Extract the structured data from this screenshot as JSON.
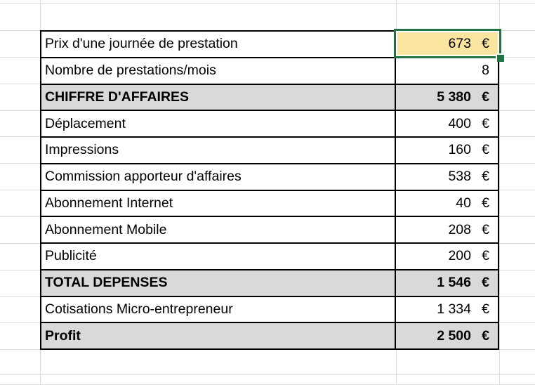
{
  "app": {
    "type": "spreadsheet",
    "description": "Micro-entrepreneur monthly revenue and expenses sheet (French)"
  },
  "colors": {
    "background": "#ffffff",
    "gridline": "#dcdcdc",
    "cell_border": "#000000",
    "gray_fill": "#d9d9d9",
    "selected_cell_fill": "#fae5a0",
    "selection_green": "#217346"
  },
  "selection": {
    "selected_row_label": "Prix d'une journée de prestation",
    "selected_value": "673",
    "currency": "€"
  },
  "table": {
    "rows": [
      {
        "label": "Prix d'une journée de prestation",
        "value": "673",
        "currency": "€",
        "bold": false,
        "fill": "none",
        "selected": true
      },
      {
        "label": "Nombre de prestations/mois",
        "value": "8",
        "currency": "",
        "bold": false,
        "fill": "none",
        "selected": false
      },
      {
        "label": "CHIFFRE D'AFFAIRES",
        "value": "5 380",
        "currency": "€",
        "bold": true,
        "fill": "gray",
        "selected": false
      },
      {
        "label": "Déplacement",
        "value": "400",
        "currency": "€",
        "bold": false,
        "fill": "none",
        "selected": false
      },
      {
        "label": "Impressions",
        "value": "160",
        "currency": "€",
        "bold": false,
        "fill": "none",
        "selected": false
      },
      {
        "label": "Commission apporteur d'affaires",
        "value": "538",
        "currency": "€",
        "bold": false,
        "fill": "none",
        "selected": false
      },
      {
        "label": "Abonnement Internet",
        "value": "40",
        "currency": "€",
        "bold": false,
        "fill": "none",
        "selected": false
      },
      {
        "label": "Abonnement Mobile",
        "value": "208",
        "currency": "€",
        "bold": false,
        "fill": "none",
        "selected": false
      },
      {
        "label": "Publicité",
        "value": "200",
        "currency": "€",
        "bold": false,
        "fill": "none",
        "selected": false
      },
      {
        "label": "TOTAL DEPENSES",
        "value": "1 546",
        "currency": "€",
        "bold": true,
        "fill": "gray",
        "selected": false
      },
      {
        "label": "Cotisations Micro-entrepreneur",
        "value": "1 334",
        "currency": "€",
        "bold": false,
        "fill": "none",
        "selected": false
      },
      {
        "label": "Profit",
        "value": "2 500",
        "currency": "€",
        "bold": true,
        "fill": "gray",
        "selected": false
      }
    ]
  }
}
